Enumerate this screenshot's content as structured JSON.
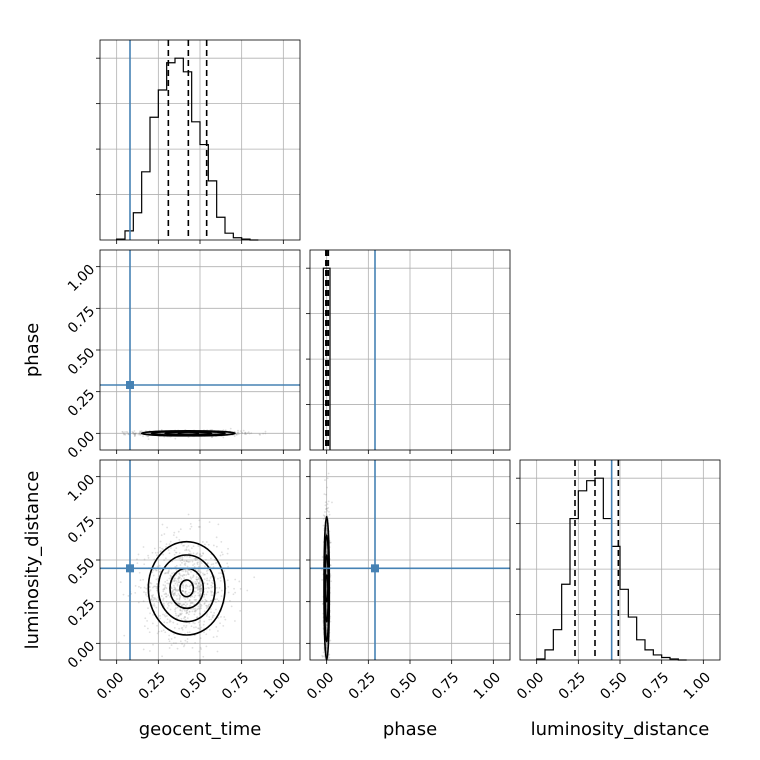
{
  "parameters": [
    "geocent_time",
    "phase",
    "luminosity_distance"
  ],
  "axis_labels": {
    "x": [
      "geocent_time",
      "phase",
      "luminosity_distance"
    ],
    "y": [
      "",
      "phase",
      "luminosity_distance"
    ]
  },
  "tick_labels": [
    "0.00",
    "0.25",
    "0.50",
    "0.75",
    "1.00"
  ],
  "colors": {
    "truth": "#4682b4",
    "histogram": "#000000",
    "grid": "#b0b0b0"
  },
  "chart_data": [
    {
      "type": "histogram",
      "parameter": "geocent_time",
      "xlim": [
        -0.1,
        1.1
      ],
      "bin_edges": [
        0.0,
        0.05,
        0.1,
        0.15,
        0.2,
        0.25,
        0.3,
        0.35,
        0.4,
        0.45,
        0.5,
        0.55,
        0.6,
        0.65,
        0.7,
        0.75,
        0.8,
        0.85
      ],
      "counts": [
        0.02,
        0.2,
        0.6,
        1.5,
        2.7,
        3.3,
        3.9,
        4.0,
        3.7,
        2.6,
        2.1,
        1.3,
        0.5,
        0.15,
        0.05,
        0.02,
        0.0
      ],
      "quantiles": [
        0.31,
        0.43,
        0.54
      ],
      "truth": 0.08,
      "grid": true
    },
    {
      "type": "histogram",
      "parameter": "phase",
      "xlim": [
        -0.1,
        1.1
      ],
      "bin_edges": [
        -0.02,
        0.0,
        0.02
      ],
      "counts": [
        1.0,
        1.0
      ],
      "quantiles": [
        -0.005,
        0.0,
        0.01
      ],
      "truth": 0.29,
      "grid": true
    },
    {
      "type": "histogram",
      "parameter": "luminosity_distance",
      "xlim": [
        -0.1,
        1.1
      ],
      "bin_edges": [
        0.0,
        0.05,
        0.1,
        0.15,
        0.2,
        0.25,
        0.3,
        0.35,
        0.4,
        0.45,
        0.5,
        0.55,
        0.6,
        0.65,
        0.7,
        0.75,
        0.8,
        0.85,
        0.9
      ],
      "counts": [
        0.02,
        0.2,
        0.6,
        1.5,
        2.8,
        3.35,
        3.55,
        3.6,
        2.8,
        2.25,
        1.4,
        0.85,
        0.4,
        0.2,
        0.1,
        0.05,
        0.02,
        0.0
      ],
      "quantiles": [
        0.23,
        0.35,
        0.49
      ],
      "truth": 0.45,
      "grid": true
    },
    {
      "type": "scatter-contour",
      "x_parameter": "geocent_time",
      "y_parameter": "phase",
      "xlim": [
        -0.1,
        1.1
      ],
      "ylim": [
        -0.1,
        1.1
      ],
      "center": [
        0.43,
        0.0
      ],
      "contour_radii": [
        [
          0.06,
          0.004
        ],
        [
          0.14,
          0.008
        ],
        [
          0.22,
          0.012
        ],
        [
          0.28,
          0.015
        ]
      ],
      "truth": [
        0.08,
        0.29
      ],
      "grid": true
    },
    {
      "type": "scatter-contour",
      "x_parameter": "geocent_time",
      "y_parameter": "luminosity_distance",
      "xlim": [
        -0.1,
        1.1
      ],
      "ylim": [
        -0.1,
        1.1
      ],
      "center": [
        0.42,
        0.33
      ],
      "contour_radii": [
        [
          0.04,
          0.05
        ],
        [
          0.1,
          0.12
        ],
        [
          0.17,
          0.2
        ],
        [
          0.23,
          0.28
        ]
      ],
      "truth": [
        0.08,
        0.45
      ],
      "grid": true
    },
    {
      "type": "scatter-contour",
      "x_parameter": "phase",
      "y_parameter": "luminosity_distance",
      "xlim": [
        -0.1,
        1.1
      ],
      "ylim": [
        -0.1,
        1.1
      ],
      "center": [
        0.0,
        0.33
      ],
      "contour_radii": [
        [
          0.006,
          0.08
        ],
        [
          0.01,
          0.2
        ],
        [
          0.013,
          0.32
        ],
        [
          0.016,
          0.43
        ]
      ],
      "truth": [
        0.29,
        0.45
      ],
      "grid": true
    }
  ]
}
